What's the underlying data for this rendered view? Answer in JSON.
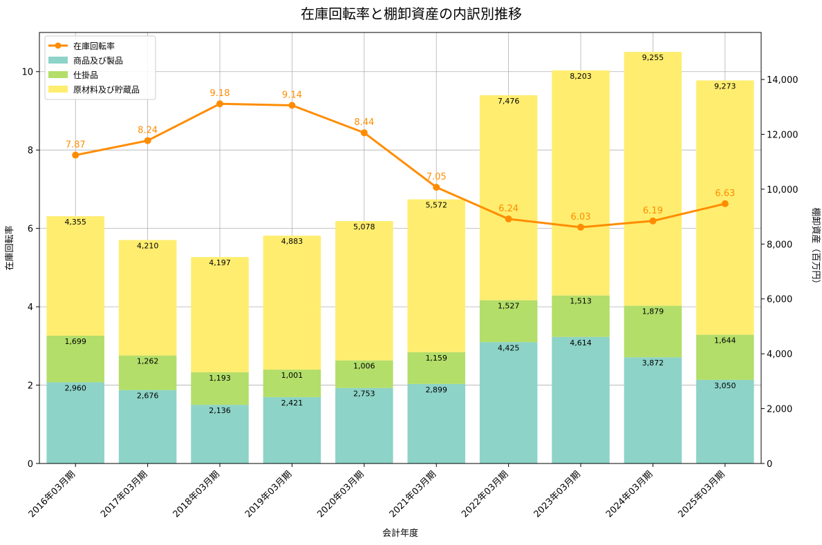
{
  "chart_data": {
    "type": "bar",
    "title": "在庫回転率と棚卸資産の内訳別推移",
    "xlabel": "会計年度",
    "ylabel_left": "在庫回転率",
    "ylabel_right": "棚卸資産（百万円）",
    "categories": [
      "2016年03月期",
      "2017年03月期",
      "2018年03月期",
      "2019年03月期",
      "2020年03月期",
      "2021年03月期",
      "2022年03月期",
      "2023年03月期",
      "2024年03月期",
      "2025年03月期"
    ],
    "series": [
      {
        "name": "商品及び製品",
        "type": "bar",
        "axis": "right",
        "color": "#8dd3c7",
        "values": [
          2960,
          2676,
          2136,
          2421,
          2753,
          2899,
          4425,
          4614,
          3872,
          3050
        ],
        "labels": [
          "2,960",
          "2,676",
          "2,136",
          "2,421",
          "2,753",
          "2,899",
          "4,425",
          "4,614",
          "3,872",
          "3,050"
        ]
      },
      {
        "name": "仕掛品",
        "type": "bar",
        "axis": "right",
        "color": "#b3de69",
        "values": [
          1699,
          1262,
          1193,
          1001,
          1006,
          1159,
          1527,
          1513,
          1879,
          1644
        ],
        "labels": [
          "1,699",
          "1,262",
          "1,193",
          "1,001",
          "1,006",
          "1,159",
          "1,527",
          "1,513",
          "1,879",
          "1,644"
        ]
      },
      {
        "name": "原材料及び貯蔵品",
        "type": "bar",
        "axis": "right",
        "color": "#ffed6f",
        "values": [
          4355,
          4210,
          4197,
          4883,
          5078,
          5572,
          7476,
          8203,
          9255,
          9273
        ],
        "labels": [
          "4,355",
          "4,210",
          "4,197",
          "4,883",
          "5,078",
          "5,572",
          "7,476",
          "8,203",
          "9,255",
          "9,273"
        ]
      },
      {
        "name": "在庫回転率",
        "type": "line",
        "axis": "left",
        "color": "#ff8c00",
        "values": [
          7.87,
          8.24,
          9.18,
          9.14,
          8.44,
          7.05,
          6.24,
          6.03,
          6.19,
          6.63
        ],
        "labels": [
          "7.87",
          "8.24",
          "9.18",
          "9.14",
          "8.44",
          "7.05",
          "6.24",
          "6.03",
          "6.19",
          "6.63"
        ]
      }
    ],
    "ylim_left": [
      0,
      11
    ],
    "yticks_left": [
      0,
      2,
      4,
      6,
      8,
      10
    ],
    "yticklabels_left": [
      "0",
      "2",
      "4",
      "6",
      "8",
      "10"
    ],
    "ylim_right": [
      0,
      15714
    ],
    "yticks_right": [
      0,
      2000,
      4000,
      6000,
      8000,
      10000,
      12000,
      14000
    ],
    "yticklabels_right": [
      "0",
      "2,000",
      "4,000",
      "6,000",
      "8,000",
      "10,000",
      "12,000",
      "14,000"
    ],
    "legend_order": [
      "在庫回転率",
      "商品及び製品",
      "仕掛品",
      "原材料及び貯蔵品"
    ],
    "legend": "top-left",
    "grid": true
  }
}
